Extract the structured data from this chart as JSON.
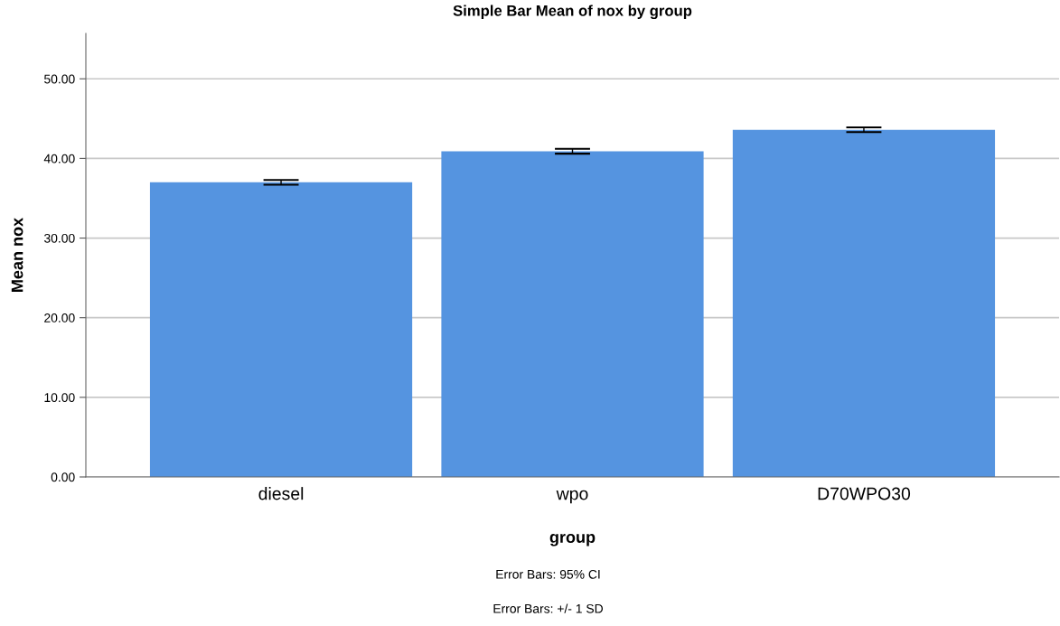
{
  "chart_data": {
    "type": "bar",
    "title": "Simple Bar Mean of nox by group",
    "xlabel": "group",
    "ylabel": "Mean nox",
    "categories": [
      "diesel",
      "wpo",
      "D70WPO30"
    ],
    "values": [
      37.0,
      40.9,
      43.6
    ],
    "errors": [
      0.3,
      0.3,
      0.3
    ],
    "color": "#5594e0",
    "ylim": [
      0,
      55.7
    ],
    "yticks": [
      {
        "value": 0,
        "label": "0.00"
      },
      {
        "value": 10,
        "label": "10.00"
      },
      {
        "value": 20,
        "label": "20.00"
      },
      {
        "value": 30,
        "label": "30.00"
      },
      {
        "value": 40,
        "label": "40.00"
      },
      {
        "value": 50,
        "label": "50.00"
      }
    ],
    "grid": "y",
    "annotations": [
      "Error Bars: 95% CI",
      "Error Bars: +/- 1 SD"
    ]
  }
}
